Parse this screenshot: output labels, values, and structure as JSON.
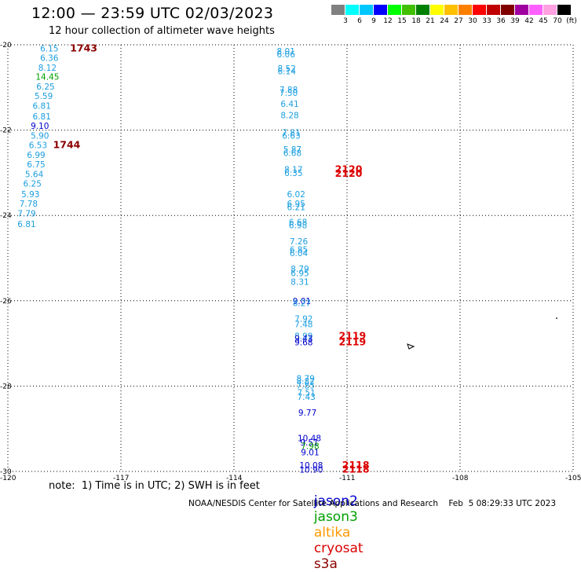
{
  "header": {
    "title": "12:00 — 23:59 UTC 02/03/2023",
    "subtitle": "12 hour collection of altimeter wave heights"
  },
  "colorbar": {
    "colors": [
      "#808080",
      "#00ffff",
      "#00c8ff",
      "#0000ff",
      "#00ff00",
      "#40c000",
      "#008000",
      "#ffff00",
      "#ffc000",
      "#ff8000",
      "#ff0000",
      "#c00000",
      "#800000",
      "#a000a0",
      "#ff60ff",
      "#ffa0e0",
      "#000000"
    ],
    "labels": [
      "3",
      "6",
      "9",
      "12",
      "15",
      "18",
      "21",
      "24",
      "27",
      "30",
      "33",
      "36",
      "39",
      "42",
      "45",
      "70",
      "(ft)"
    ]
  },
  "axes": {
    "lon_ticks": [
      "-120",
      "-117",
      "-114",
      "-111",
      "-108",
      "-105"
    ],
    "lat_ticks": [
      "-20",
      "-22",
      "-24",
      "-26",
      "-28",
      "-30"
    ],
    "lon_range": [
      -120,
      -105
    ],
    "lat_range": [
      -30,
      -20
    ]
  },
  "satellite_colors": {
    "jason2": "#0000cc",
    "jason3": "#00a000",
    "altika": "#ff9900",
    "cryosat": "#dd0000",
    "s3a": "#8b0000",
    "default": "#1a9ee0"
  },
  "observations": [
    {
      "lon": -118.9,
      "lat": -20.08,
      "v": "6.15",
      "c": "default"
    },
    {
      "lon": -118.9,
      "lat": -20.3,
      "v": "6.36",
      "c": "default"
    },
    {
      "lon": -118.95,
      "lat": -20.53,
      "v": "8.12",
      "c": "default"
    },
    {
      "lon": -118.95,
      "lat": -20.75,
      "v": "14.45",
      "c": "jason3"
    },
    {
      "lon": -119.0,
      "lat": -20.98,
      "v": "6.25",
      "c": "default"
    },
    {
      "lon": -119.05,
      "lat": -21.2,
      "v": "5.59",
      "c": "default"
    },
    {
      "lon": -119.1,
      "lat": -21.43,
      "v": "6.81",
      "c": "default"
    },
    {
      "lon": -119.1,
      "lat": -21.68,
      "v": "6.81",
      "c": "default"
    },
    {
      "lon": -119.15,
      "lat": -21.9,
      "v": "9.10",
      "c": "jason2"
    },
    {
      "lon": -119.15,
      "lat": -22.13,
      "v": "5.90",
      "c": "default"
    },
    {
      "lon": -119.2,
      "lat": -22.35,
      "v": "6.53",
      "c": "default"
    },
    {
      "lon": -119.25,
      "lat": -22.58,
      "v": "6.99",
      "c": "default"
    },
    {
      "lon": -119.25,
      "lat": -22.8,
      "v": "6.75",
      "c": "default"
    },
    {
      "lon": -119.3,
      "lat": -23.03,
      "v": "5.64",
      "c": "default"
    },
    {
      "lon": -119.35,
      "lat": -23.25,
      "v": "6.25",
      "c": "default"
    },
    {
      "lon": -119.4,
      "lat": -23.5,
      "v": "5.93",
      "c": "default"
    },
    {
      "lon": -119.45,
      "lat": -23.72,
      "v": "7.78",
      "c": "default"
    },
    {
      "lon": -119.5,
      "lat": -23.95,
      "v": "7.79",
      "c": "default"
    },
    {
      "lon": -119.5,
      "lat": -24.2,
      "v": "6.81",
      "c": "default"
    },
    {
      "lon": -112.62,
      "lat": -20.15,
      "v": "8.01",
      "c": "default"
    },
    {
      "lon": -112.62,
      "lat": -20.22,
      "v": "6.06",
      "c": "default"
    },
    {
      "lon": -112.6,
      "lat": -20.55,
      "v": "8.52",
      "c": "default"
    },
    {
      "lon": -112.6,
      "lat": -20.62,
      "v": "6.14",
      "c": "default"
    },
    {
      "lon": -112.55,
      "lat": -21.05,
      "v": "7.88",
      "c": "default"
    },
    {
      "lon": -112.55,
      "lat": -21.12,
      "v": "7.50",
      "c": "default"
    },
    {
      "lon": -112.52,
      "lat": -21.38,
      "v": "6.41",
      "c": "default"
    },
    {
      "lon": -112.52,
      "lat": -21.65,
      "v": "8.28",
      "c": "default"
    },
    {
      "lon": -112.48,
      "lat": -22.05,
      "v": "7.81",
      "c": "default"
    },
    {
      "lon": -112.48,
      "lat": -22.13,
      "v": "6.63",
      "c": "default"
    },
    {
      "lon": -112.45,
      "lat": -22.45,
      "v": "5.87",
      "c": "default"
    },
    {
      "lon": -112.45,
      "lat": -22.53,
      "v": "6.68",
      "c": "default"
    },
    {
      "lon": -112.42,
      "lat": -22.92,
      "v": "8.17",
      "c": "default"
    },
    {
      "lon": -112.42,
      "lat": -23.0,
      "v": "6.35",
      "c": "default"
    },
    {
      "lon": -112.35,
      "lat": -23.5,
      "v": "6.02",
      "c": "default"
    },
    {
      "lon": -112.35,
      "lat": -23.72,
      "v": "6.95",
      "c": "default"
    },
    {
      "lon": -112.35,
      "lat": -23.8,
      "v": "6.21",
      "c": "default"
    },
    {
      "lon": -112.3,
      "lat": -24.15,
      "v": "6.68",
      "c": "default"
    },
    {
      "lon": -112.3,
      "lat": -24.23,
      "v": "6.98",
      "c": "default"
    },
    {
      "lon": -112.28,
      "lat": -24.6,
      "v": "7.26",
      "c": "default"
    },
    {
      "lon": -112.28,
      "lat": -24.8,
      "v": "6.85",
      "c": "default"
    },
    {
      "lon": -112.28,
      "lat": -24.88,
      "v": "6.04",
      "c": "default"
    },
    {
      "lon": -112.25,
      "lat": -25.25,
      "v": "8.79",
      "c": "default"
    },
    {
      "lon": -112.25,
      "lat": -25.35,
      "v": "6.95",
      "c": "default"
    },
    {
      "lon": -112.25,
      "lat": -25.55,
      "v": "8.31",
      "c": "default"
    },
    {
      "lon": -112.2,
      "lat": -26.0,
      "v": "9.01",
      "c": "jason2"
    },
    {
      "lon": -112.2,
      "lat": -26.05,
      "v": "8.27",
      "c": "default"
    },
    {
      "lon": -112.15,
      "lat": -26.42,
      "v": "7.92",
      "c": "default"
    },
    {
      "lon": -112.15,
      "lat": -26.55,
      "v": "7.48",
      "c": "default"
    },
    {
      "lon": -112.15,
      "lat": -26.82,
      "v": "8.99",
      "c": "default"
    },
    {
      "lon": -112.15,
      "lat": -26.88,
      "v": "9.43",
      "c": "jason2"
    },
    {
      "lon": -112.15,
      "lat": -26.97,
      "v": "9.68",
      "c": "jason2"
    },
    {
      "lon": -112.1,
      "lat": -27.82,
      "v": "8.79",
      "c": "default"
    },
    {
      "lon": -112.1,
      "lat": -27.88,
      "v": "8.82",
      "c": "default"
    },
    {
      "lon": -112.1,
      "lat": -27.98,
      "v": "7.85",
      "c": "default"
    },
    {
      "lon": -112.08,
      "lat": -28.15,
      "v": "7.51",
      "c": "default"
    },
    {
      "lon": -112.08,
      "lat": -28.25,
      "v": "7.43",
      "c": "default"
    },
    {
      "lon": -112.05,
      "lat": -28.62,
      "v": "9.77",
      "c": "jason2"
    },
    {
      "lon": -112.0,
      "lat": -29.22,
      "v": "10.48",
      "c": "jason2"
    },
    {
      "lon": -112.0,
      "lat": -29.32,
      "v": "9.51",
      "c": "jason2"
    },
    {
      "lon": -111.98,
      "lat": -29.4,
      "v": "7.98",
      "c": "jason3"
    },
    {
      "lon": -111.98,
      "lat": -29.55,
      "v": "9.01",
      "c": "jason2"
    },
    {
      "lon": -111.95,
      "lat": -29.85,
      "v": "10.08",
      "c": "jason2"
    },
    {
      "lon": -111.95,
      "lat": -29.95,
      "v": "10.90",
      "c": "jason2"
    }
  ],
  "cycle_labels": [
    {
      "lon": -118.35,
      "lat": -20.08,
      "v": "1743",
      "c": "s3a"
    },
    {
      "lon": -118.8,
      "lat": -22.35,
      "v": "1744",
      "c": "s3a"
    },
    {
      "lon": -111.32,
      "lat": -22.92,
      "v": "2120",
      "c": "cryosat"
    },
    {
      "lon": -111.32,
      "lat": -23.02,
      "v": "2120",
      "c": "cryosat"
    },
    {
      "lon": -111.22,
      "lat": -26.82,
      "v": "2119",
      "c": "cryosat"
    },
    {
      "lon": -111.22,
      "lat": -26.97,
      "v": "2119",
      "c": "cryosat"
    },
    {
      "lon": -111.13,
      "lat": -29.85,
      "v": "2118",
      "c": "cryosat"
    },
    {
      "lon": -111.13,
      "lat": -29.95,
      "v": "2118",
      "c": "cryosat"
    }
  ],
  "note": "note:  1) Time is in UTC; 2) SWH is in feet",
  "satellite_legend": [
    "jason2",
    "jason3",
    "altika",
    "cryosat",
    "s3a"
  ],
  "footer": "NOAA/NESDIS Center for Satellite Applications and Research    Feb  5 08:29:33 UTC 2023"
}
